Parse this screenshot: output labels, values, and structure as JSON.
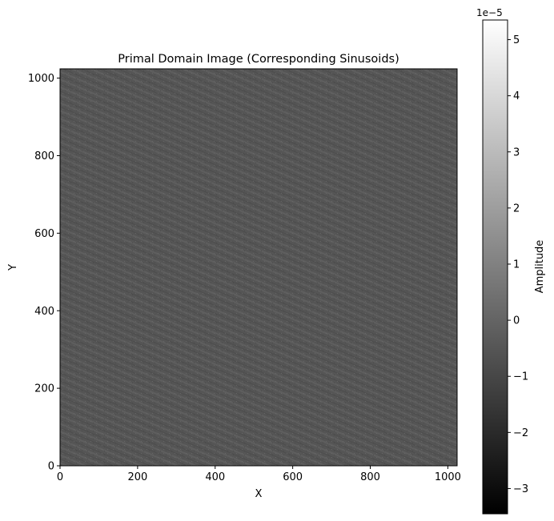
{
  "chart_data": {
    "type": "heatmap",
    "title": "Primal Domain Image (Corresponding Sinusoids)",
    "xlabel": "X",
    "ylabel": "Y",
    "xlim": [
      0,
      1024
    ],
    "ylim": [
      0,
      1024
    ],
    "xticks": [
      0,
      200,
      400,
      600,
      800,
      1000
    ],
    "yticks": [
      0,
      200,
      400,
      600,
      800,
      1000
    ],
    "xtick_labels": [
      "0",
      "200",
      "400",
      "600",
      "800",
      "1000"
    ],
    "ytick_labels": [
      "0",
      "200",
      "400",
      "600",
      "800",
      "1000"
    ],
    "colormap": "gray",
    "colorbar": {
      "label": "Amplitude",
      "multiplier": "1e−5",
      "range": [
        -3.45,
        5.35
      ],
      "ticks": [
        -3,
        -2,
        -1,
        0,
        1,
        2,
        3,
        4,
        5
      ],
      "tick_labels": [
        "−3",
        "−2",
        "−1",
        "0",
        "1",
        "2",
        "3",
        "4",
        "5"
      ]
    },
    "description_value_mean": -0.55,
    "stripe_angle_deg": 67,
    "colors": {
      "low": "#000000",
      "high": "#ffffff",
      "field": "#555555"
    }
  }
}
